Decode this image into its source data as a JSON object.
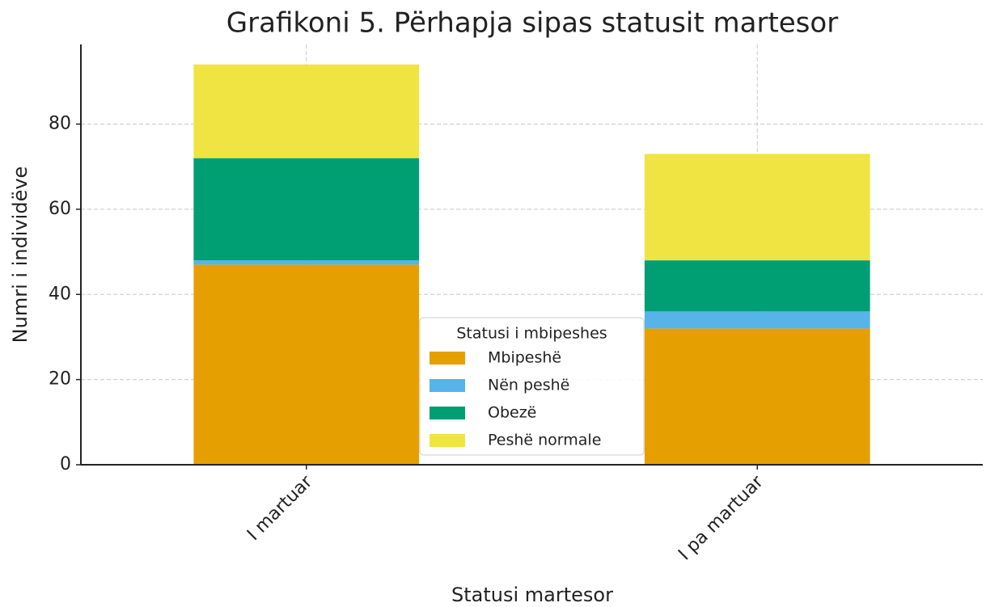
{
  "chart_data": {
    "type": "stacked_bar",
    "title": "Grafikoni 5. Përhapja sipas statusit martesor",
    "x_label": "Statusi martesor",
    "y_label": "Numri i individëve",
    "categories": [
      "I martuar",
      "I pa martuar"
    ],
    "series": [
      {
        "name": "Mbipeshë",
        "color": "#e69f00",
        "values": [
          47,
          32
        ]
      },
      {
        "name": "Nën peshë",
        "color": "#56b4e9",
        "values": [
          1,
          4
        ]
      },
      {
        "name": "Obezë",
        "color": "#009e73",
        "values": [
          24,
          12
        ]
      },
      {
        "name": "Peshë normale",
        "color": "#f0e442",
        "values": [
          22,
          25
        ]
      }
    ],
    "legend_title": "Statusi i mbipeshes",
    "legend_position": "lower center",
    "ylim": [
      0,
      98.7
    ],
    "yticks": [
      0,
      20,
      40,
      60,
      80
    ],
    "grid": true
  }
}
